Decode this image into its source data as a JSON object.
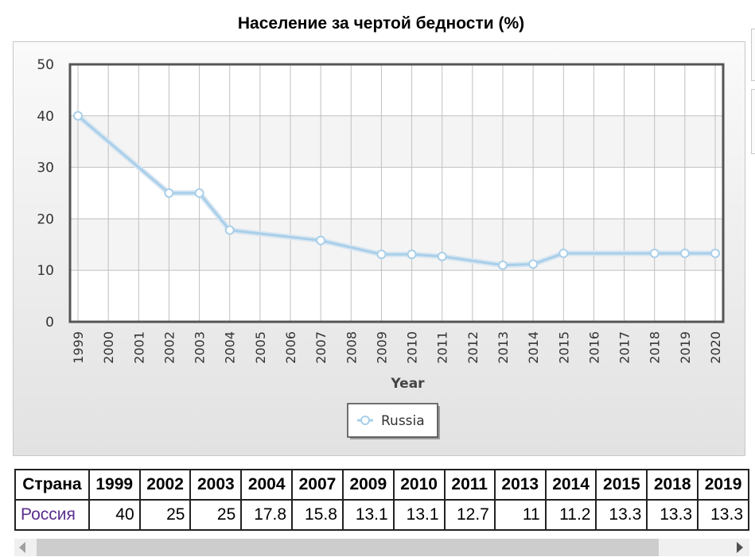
{
  "chart_data": {
    "type": "line",
    "title": "Население за чертой бедности (%)",
    "xlabel": "Year",
    "ylabel": "",
    "ylim": [
      0,
      50
    ],
    "y_ticks": [
      0,
      10,
      20,
      30,
      40,
      50
    ],
    "categories": [
      "1999",
      "2000",
      "2001",
      "2002",
      "2003",
      "2004",
      "2005",
      "2006",
      "2007",
      "2008",
      "2009",
      "2010",
      "2011",
      "2012",
      "2013",
      "2014",
      "2015",
      "2016",
      "2017",
      "2018",
      "2019",
      "2020"
    ],
    "series": [
      {
        "name": "Russia",
        "color": "#a9cfe9",
        "points": [
          {
            "x": "1999",
            "y": 40
          },
          {
            "x": "2002",
            "y": 25
          },
          {
            "x": "2003",
            "y": 25
          },
          {
            "x": "2004",
            "y": 17.8
          },
          {
            "x": "2007",
            "y": 15.8
          },
          {
            "x": "2009",
            "y": 13.1
          },
          {
            "x": "2010",
            "y": 13.1
          },
          {
            "x": "2011",
            "y": 12.7
          },
          {
            "x": "2013",
            "y": 11
          },
          {
            "x": "2014",
            "y": 11.2
          },
          {
            "x": "2015",
            "y": 13.3
          },
          {
            "x": "2018",
            "y": 13.3
          },
          {
            "x": "2019",
            "y": 13.3
          },
          {
            "x": "2020",
            "y": 13.3
          }
        ]
      }
    ],
    "grid": true,
    "legend_position": "bottom-center"
  },
  "table": {
    "headers": [
      "Страна",
      "1999",
      "2002",
      "2003",
      "2004",
      "2007",
      "2009",
      "2010",
      "2011",
      "2013",
      "2014",
      "2015",
      "2018",
      "2019"
    ],
    "rows": [
      [
        "Россия",
        "40",
        "25",
        "25",
        "17.8",
        "15.8",
        "13.1",
        "13.1",
        "12.7",
        "11",
        "11.2",
        "13.3",
        "13.3",
        "13.3"
      ]
    ]
  },
  "colors": {
    "series_line": "#a9cfe9",
    "plot_border": "#555555",
    "grid": "#c0c0c0",
    "country_link": "#5b2d8e"
  },
  "icons": {
    "scroll_left": "triangle-left-icon",
    "scroll_right": "triangle-right-icon",
    "legend_marker": "circle-marker-icon"
  }
}
